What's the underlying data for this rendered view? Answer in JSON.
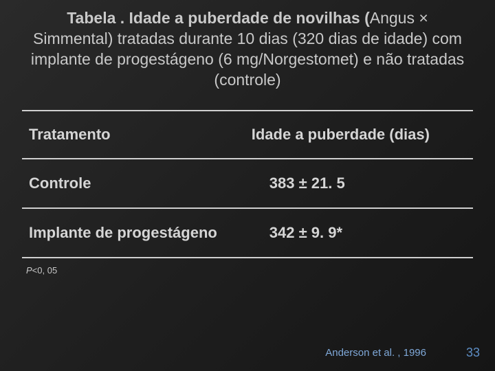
{
  "title": {
    "bold_prefix": "Tabela . Idade a puberdade de novilhas (",
    "rest": "Angus × Simmental) tratadas durante 10 dias (320 dias de idade) com implante de progestágeno (6 mg/Norgestomet) e não tratadas (controle)"
  },
  "table": {
    "header": {
      "col1": "Tratamento",
      "col2": "Idade a puberdade (dias)"
    },
    "rows": [
      {
        "treatment": "Controle",
        "value": "383 ± 21. 5"
      },
      {
        "treatment": "Implante de progestágeno",
        "value": "342 ± 9. 9*"
      }
    ]
  },
  "footnote": {
    "p_italic": "P",
    "rest": "<0, 05"
  },
  "citation": "Anderson et al. , 1996",
  "page_number": "33",
  "colors": {
    "text": "#c9c9c9",
    "rule": "#d0d0d0",
    "citation": "#7fa8d8",
    "page": "#5e8fc6",
    "bg_from": "#2a2a2a",
    "bg_to": "#151515"
  }
}
